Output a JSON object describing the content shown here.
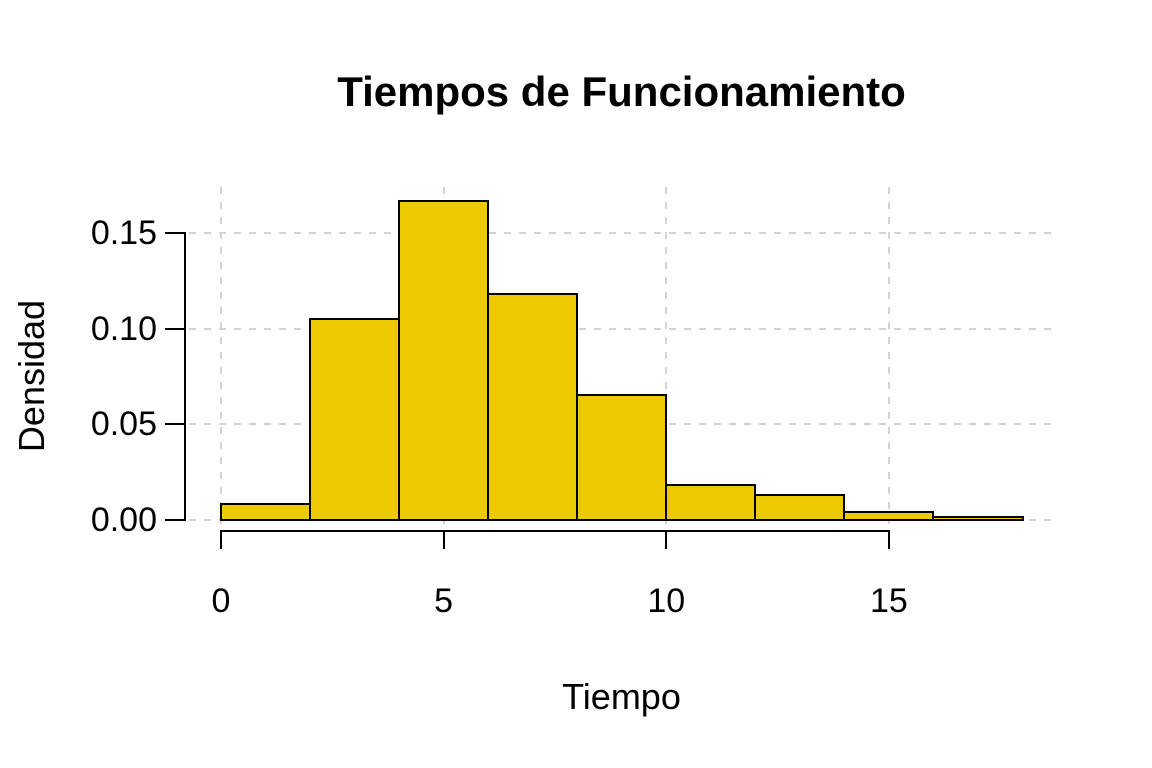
{
  "title": "Tiempos de Funcionamiento",
  "chart_data": {
    "type": "bar",
    "subtype": "histogram",
    "title": "Tiempos de Funcionamiento",
    "xlabel": "Tiempo",
    "ylabel": "Densidad",
    "bin_edges": [
      0,
      2,
      4,
      6,
      8,
      10,
      12,
      14,
      16,
      18
    ],
    "densities": [
      0.008,
      0.105,
      0.167,
      0.118,
      0.065,
      0.018,
      0.013,
      0.004,
      0.0015
    ],
    "xticks": [
      0,
      5,
      10,
      15
    ],
    "xtick_labels": [
      "0",
      "5",
      "10",
      "15"
    ],
    "yticks": [
      0,
      0.05,
      0.1,
      0.15
    ],
    "ytick_labels": [
      "0.00",
      "0.05",
      "0.10",
      "0.15"
    ],
    "xlim": [
      -0.72,
      18.72
    ],
    "ylim": [
      0,
      0.174
    ],
    "grid": true,
    "grid_style": "dashed",
    "legend": null,
    "colors": {
      "bar_fill": "#EEC900",
      "bar_border": "#000000",
      "grid": "#D3D3D3",
      "text": "#000000",
      "background": "#FFFFFF"
    }
  }
}
